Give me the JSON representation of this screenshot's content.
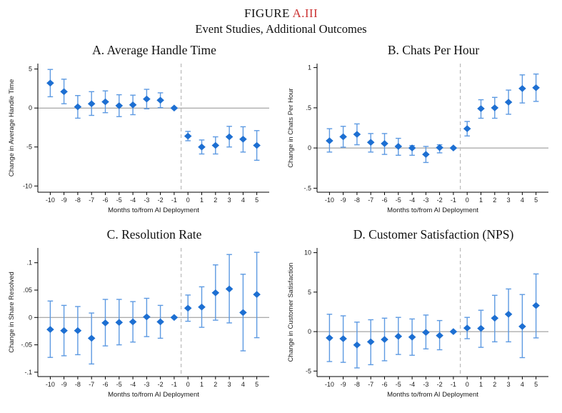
{
  "figure": {
    "title_prefix": "FIGURE ",
    "title_ref": "A.III",
    "subtitle": "Event Studies, Additional Outcomes"
  },
  "colors": {
    "marker": "#1d6fd2",
    "whisker": "#5d9ae2",
    "refline": "#8f8f8f",
    "vline": "#bdbdbd",
    "axis": "#000000",
    "title_ref_red": "#cc3333"
  },
  "chart_data": [
    {
      "type": "scatter",
      "panel": "A",
      "title": "A. Average Handle Time",
      "xlabel": "Months to/from AI Deployment",
      "ylabel": "Change in Average Handle Time",
      "x": [
        -10,
        -9,
        -8,
        -7,
        -6,
        -5,
        -4,
        -3,
        -2,
        -1,
        0,
        1,
        2,
        3,
        4,
        5
      ],
      "y": [
        3.2,
        2.1,
        0.15,
        0.55,
        0.8,
        0.3,
        0.4,
        1.15,
        1.0,
        0,
        -3.6,
        -5.0,
        -4.8,
        -3.7,
        -4.0,
        -4.8
      ],
      "ci_low": [
        1.45,
        0.55,
        -1.3,
        -0.95,
        -0.6,
        -1.1,
        -0.85,
        -0.1,
        0.05,
        0,
        -4.2,
        -5.9,
        -5.9,
        -5.0,
        -5.65,
        -6.7
      ],
      "ci_high": [
        4.95,
        3.7,
        1.6,
        2.1,
        2.2,
        1.7,
        1.65,
        2.4,
        1.95,
        0,
        -3.0,
        -4.1,
        -3.7,
        -2.35,
        -2.4,
        -2.9
      ],
      "ylim": [
        -10.8,
        5.7
      ],
      "yticks": [
        5,
        0,
        -5,
        -10
      ],
      "ytick_labels": [
        "5",
        "0",
        "-5",
        "-10"
      ],
      "vline_x": -0.5,
      "refline_y": 0,
      "reference_month": -1
    },
    {
      "type": "scatter",
      "panel": "B",
      "title": "B. Chats Per Hour",
      "xlabel": "Months to/from AI Deployment",
      "ylabel": "Change in Chats Per Hour",
      "x": [
        -10,
        -9,
        -8,
        -7,
        -6,
        -5,
        -4,
        -3,
        -2,
        -1,
        0,
        1,
        2,
        3,
        4,
        5
      ],
      "y": [
        0.09,
        0.14,
        0.17,
        0.07,
        0.055,
        0.02,
        0.0,
        -0.08,
        0.005,
        0,
        0.24,
        0.49,
        0.5,
        0.57,
        0.74,
        0.75
      ],
      "ci_low": [
        -0.05,
        0.01,
        0.04,
        -0.05,
        -0.08,
        -0.09,
        -0.09,
        -0.18,
        -0.06,
        0,
        0.15,
        0.37,
        0.37,
        0.42,
        0.56,
        0.58
      ],
      "ci_high": [
        0.24,
        0.27,
        0.3,
        0.18,
        0.18,
        0.12,
        0.03,
        0.02,
        0.04,
        0,
        0.33,
        0.6,
        0.63,
        0.72,
        0.91,
        0.92
      ],
      "ylim": [
        -0.55,
        1.05
      ],
      "yticks": [
        1,
        0.5,
        0,
        -0.5
      ],
      "ytick_labels": [
        "1",
        ".5",
        "0",
        "-.5"
      ],
      "vline_x": -0.5,
      "refline_y": 0,
      "reference_month": -1
    },
    {
      "type": "scatter",
      "panel": "C",
      "title": "C. Resolution Rate",
      "xlabel": "Months to/from AI Deployment",
      "ylabel": "Change in Share Resolved",
      "x": [
        -10,
        -9,
        -8,
        -7,
        -6,
        -5,
        -4,
        -3,
        -2,
        -1,
        0,
        1,
        2,
        3,
        4,
        5
      ],
      "y": [
        -0.022,
        -0.024,
        -0.024,
        -0.038,
        -0.01,
        -0.009,
        -0.008,
        0.001,
        -0.008,
        0,
        0.017,
        0.019,
        0.045,
        0.052,
        0.009,
        0.042
      ],
      "ci_low": [
        -0.073,
        -0.07,
        -0.068,
        -0.085,
        -0.052,
        -0.05,
        -0.045,
        -0.035,
        -0.038,
        0,
        -0.007,
        -0.018,
        -0.005,
        -0.01,
        -0.061,
        -0.037
      ],
      "ci_high": [
        0.03,
        0.022,
        0.02,
        0.008,
        0.033,
        0.033,
        0.029,
        0.035,
        0.022,
        0,
        0.041,
        0.056,
        0.096,
        0.115,
        0.079,
        0.119
      ],
      "ylim": [
        -0.108,
        0.127
      ],
      "yticks": [
        0.1,
        0.05,
        0,
        -0.05,
        -0.1
      ],
      "ytick_labels": [
        ".1",
        ".05",
        "0",
        "-.05",
        "-.1"
      ],
      "vline_x": -0.5,
      "refline_y": 0,
      "reference_month": -1
    },
    {
      "type": "scatter",
      "panel": "D",
      "title": "D. Customer Satisfaction (NPS)",
      "xlabel": "Months to/from AI Deployment",
      "ylabel": "Change in Customer Satisfaction",
      "x": [
        -10,
        -9,
        -8,
        -7,
        -6,
        -5,
        -4,
        -3,
        -2,
        -1,
        0,
        1,
        2,
        3,
        4,
        5
      ],
      "y": [
        -0.8,
        -0.9,
        -1.7,
        -1.3,
        -1.0,
        -0.6,
        -0.7,
        -0.1,
        -0.5,
        0,
        0.45,
        0.4,
        1.7,
        2.2,
        0.65,
        3.3
      ],
      "ci_low": [
        -3.8,
        -3.9,
        -4.6,
        -4.2,
        -3.7,
        -2.9,
        -3.0,
        -2.2,
        -2.3,
        0,
        -0.9,
        -2.0,
        -1.3,
        -1.3,
        -3.3,
        -0.8
      ],
      "ci_high": [
        2.2,
        2.0,
        1.2,
        1.5,
        1.7,
        1.8,
        1.6,
        2.1,
        1.4,
        0,
        1.8,
        2.7,
        4.6,
        5.4,
        4.7,
        7.3
      ],
      "ylim": [
        -5.7,
        10.6
      ],
      "yticks": [
        10,
        5,
        0,
        -5
      ],
      "ytick_labels": [
        "10",
        "5",
        "0",
        "-5"
      ],
      "vline_x": -0.5,
      "refline_y": 0,
      "reference_month": -1
    }
  ]
}
